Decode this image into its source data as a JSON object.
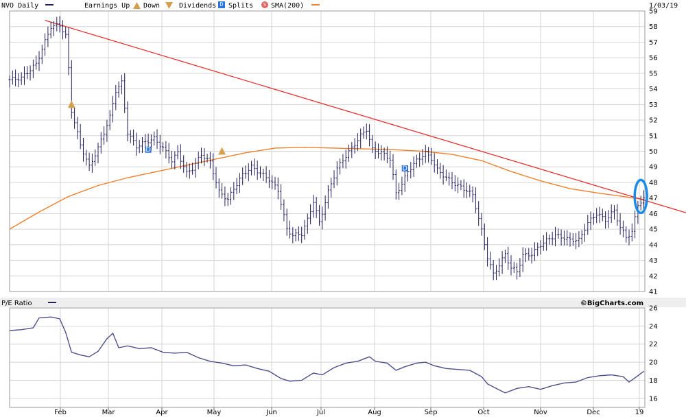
{
  "legend": {
    "ticker": "NVO Daily",
    "earnings": "Earnings Up",
    "down": "Down",
    "dividends": "Dividends",
    "dividend_badge": "D",
    "splits": "Splits",
    "split_badge": "S",
    "sma": "SMA(200)",
    "date": "1/03/19"
  },
  "pe_panel": {
    "title": "P/E Ratio",
    "brand": "©BigCharts.com"
  },
  "colors": {
    "price_bar": "#1f1f5a",
    "sma": "#f07f2c",
    "trendline": "#e83030",
    "grid": "#d4d4d4",
    "pe_line": "#4a4f8c",
    "dividend_badge": "#2e74e0",
    "earnings_marker": "#d4a050",
    "highlight_ellipse": "#1a8ce8"
  },
  "chart_data": [
    {
      "type": "ohlc",
      "title": "NVO Daily",
      "ylim": [
        41,
        59
      ],
      "y_ticks": [
        41,
        42,
        43,
        44,
        45,
        46,
        47,
        48,
        49,
        50,
        51,
        52,
        53,
        54,
        55,
        56,
        57,
        58,
        59
      ],
      "x_tick_labels": [
        "Feb",
        "Mar",
        "Apr",
        "May",
        "Jun",
        "Jul",
        "Aug",
        "Sep",
        "Oct",
        "Nov",
        "Dec",
        "19"
      ],
      "price_path": [
        [
          0,
          54.6
        ],
        [
          4,
          54.7
        ],
        [
          9,
          55.6
        ],
        [
          14,
          58.0
        ],
        [
          17,
          58.1
        ],
        [
          19,
          57.4
        ],
        [
          20,
          55.3
        ],
        [
          21,
          52.6
        ],
        [
          24,
          50.4
        ],
        [
          27,
          49.0
        ],
        [
          30,
          50.2
        ],
        [
          34,
          52.2
        ],
        [
          36,
          53.9
        ],
        [
          38,
          54.4
        ],
        [
          40,
          51.2
        ],
        [
          43,
          50.3
        ],
        [
          46,
          50.6
        ],
        [
          49,
          50.8
        ],
        [
          52,
          50.2
        ],
        [
          55,
          49.4
        ],
        [
          57,
          49.9
        ],
        [
          60,
          48.6
        ],
        [
          62,
          48.9
        ],
        [
          65,
          49.8
        ],
        [
          68,
          49.3
        ],
        [
          71,
          47.4
        ],
        [
          74,
          46.9
        ],
        [
          76,
          47.6
        ],
        [
          79,
          48.5
        ],
        [
          82,
          49.0
        ],
        [
          85,
          48.6
        ],
        [
          88,
          48.2
        ],
        [
          91,
          47.5
        ],
        [
          94,
          45.0
        ],
        [
          96,
          44.6
        ],
        [
          99,
          44.7
        ],
        [
          101,
          45.6
        ],
        [
          103,
          46.8
        ],
        [
          105,
          45.4
        ],
        [
          108,
          47.4
        ],
        [
          111,
          48.9
        ],
        [
          114,
          49.7
        ],
        [
          116,
          50.2
        ],
        [
          119,
          51.0
        ],
        [
          121,
          51.4
        ],
        [
          123,
          50.1
        ],
        [
          126,
          49.9
        ],
        [
          129,
          49.5
        ],
        [
          131,
          47.3
        ],
        [
          133,
          47.9
        ],
        [
          135,
          48.7
        ],
        [
          138,
          49.4
        ],
        [
          141,
          49.9
        ],
        [
          143,
          49.5
        ],
        [
          145,
          48.8
        ],
        [
          148,
          48.3
        ],
        [
          151,
          47.9
        ],
        [
          154,
          47.6
        ],
        [
          157,
          47.2
        ],
        [
          160,
          44.9
        ],
        [
          162,
          43.2
        ],
        [
          164,
          42.1
        ],
        [
          166,
          42.7
        ],
        [
          168,
          43.4
        ],
        [
          170,
          42.5
        ],
        [
          172,
          42.3
        ],
        [
          174,
          43.3
        ],
        [
          177,
          43.4
        ],
        [
          180,
          44.0
        ],
        [
          183,
          44.4
        ],
        [
          185,
          44.6
        ],
        [
          187,
          44.5
        ],
        [
          190,
          44.3
        ],
        [
          193,
          44.3
        ],
        [
          196,
          45.4
        ],
        [
          199,
          46.0
        ],
        [
          202,
          45.6
        ],
        [
          205,
          46.2
        ],
        [
          207,
          45.1
        ],
        [
          209,
          44.5
        ],
        [
          211,
          44.8
        ],
        [
          213,
          46.6
        ],
        [
          215,
          46.9
        ]
      ],
      "sma_200": [
        [
          0,
          45.0
        ],
        [
          10,
          46.1
        ],
        [
          20,
          47.1
        ],
        [
          30,
          47.8
        ],
        [
          40,
          48.3
        ],
        [
          50,
          48.7
        ],
        [
          60,
          49.1
        ],
        [
          70,
          49.5
        ],
        [
          80,
          49.9
        ],
        [
          90,
          50.2
        ],
        [
          100,
          50.25
        ],
        [
          110,
          50.2
        ],
        [
          120,
          50.15
        ],
        [
          130,
          50.1
        ],
        [
          140,
          50.0
        ],
        [
          150,
          49.8
        ],
        [
          160,
          49.4
        ],
        [
          170,
          48.7
        ],
        [
          180,
          48.1
        ],
        [
          190,
          47.6
        ],
        [
          200,
          47.3
        ],
        [
          208,
          47.1
        ],
        [
          215,
          46.9
        ]
      ],
      "trendline": {
        "start": [
          12,
          58.4
        ],
        "end": [
          232,
          45.9
        ]
      },
      "earnings_markers": [
        {
          "x": 21,
          "y": 53.0
        },
        {
          "x": 72,
          "y": 50.0
        }
      ],
      "dividend_markers": [
        {
          "x": 47,
          "y": 50.1
        },
        {
          "x": 134,
          "y": 48.9
        }
      ],
      "highlight": {
        "x": 214,
        "y": 47.1
      }
    },
    {
      "type": "line",
      "title": "P/E Ratio",
      "ylim": [
        15,
        26
      ],
      "y_ticks": [
        16,
        18,
        20,
        22,
        24,
        26
      ],
      "values": [
        [
          0,
          23.5
        ],
        [
          4,
          23.6
        ],
        [
          8,
          23.8
        ],
        [
          10,
          24.9
        ],
        [
          14,
          25.0
        ],
        [
          17,
          24.8
        ],
        [
          19,
          23.3
        ],
        [
          21,
          21.1
        ],
        [
          24,
          20.8
        ],
        [
          27,
          20.6
        ],
        [
          30,
          21.2
        ],
        [
          33,
          22.6
        ],
        [
          35,
          23.2
        ],
        [
          37,
          21.6
        ],
        [
          40,
          21.8
        ],
        [
          44,
          21.5
        ],
        [
          48,
          21.6
        ],
        [
          52,
          21.1
        ],
        [
          56,
          21.0
        ],
        [
          60,
          21.1
        ],
        [
          64,
          20.5
        ],
        [
          68,
          20.1
        ],
        [
          72,
          19.9
        ],
        [
          76,
          19.6
        ],
        [
          80,
          19.7
        ],
        [
          84,
          19.3
        ],
        [
          88,
          19.0
        ],
        [
          92,
          18.2
        ],
        [
          95,
          17.9
        ],
        [
          99,
          18.0
        ],
        [
          103,
          18.8
        ],
        [
          106,
          18.6
        ],
        [
          110,
          19.4
        ],
        [
          114,
          19.9
        ],
        [
          118,
          20.1
        ],
        [
          122,
          20.6
        ],
        [
          124,
          20.1
        ],
        [
          128,
          19.9
        ],
        [
          131,
          19.1
        ],
        [
          134,
          19.5
        ],
        [
          138,
          19.9
        ],
        [
          141,
          20.0
        ],
        [
          144,
          19.6
        ],
        [
          148,
          19.3
        ],
        [
          152,
          19.2
        ],
        [
          156,
          19.1
        ],
        [
          160,
          18.4
        ],
        [
          162,
          17.6
        ],
        [
          165,
          17.1
        ],
        [
          168,
          16.6
        ],
        [
          172,
          17.1
        ],
        [
          176,
          17.3
        ],
        [
          180,
          17.0
        ],
        [
          184,
          17.4
        ],
        [
          188,
          17.7
        ],
        [
          192,
          17.8
        ],
        [
          196,
          18.3
        ],
        [
          200,
          18.5
        ],
        [
          204,
          18.6
        ],
        [
          208,
          18.4
        ],
        [
          210,
          17.8
        ],
        [
          213,
          18.5
        ],
        [
          215,
          19.0
        ]
      ]
    }
  ]
}
